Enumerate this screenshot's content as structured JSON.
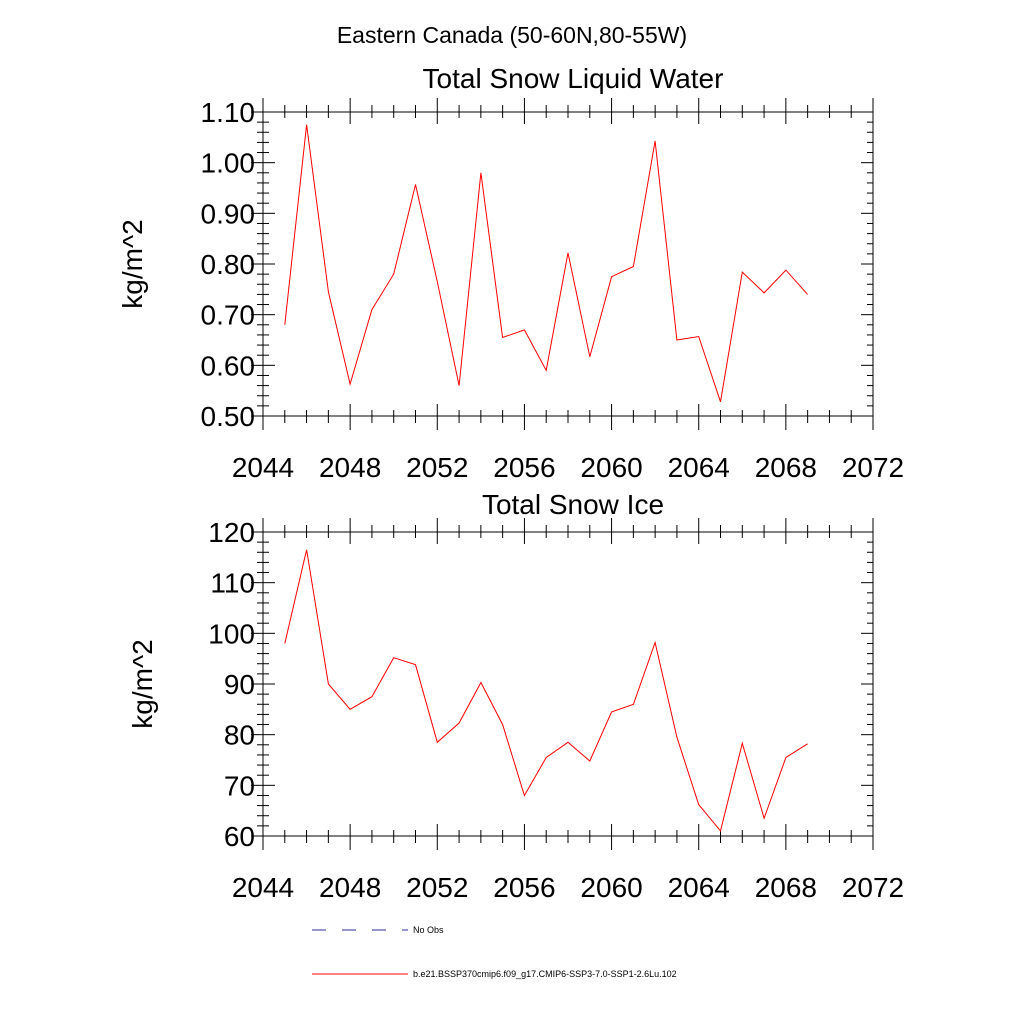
{
  "figure": {
    "suptitle": "Eastern Canada (50-60N,80-55W)"
  },
  "legend": {
    "obs_label": "No Obs",
    "obs_color": "#2b2b99",
    "model_label": "b.e21.BSSP370cmip6.f09_g17.CMIP6-SSP3-7.0-SSP1-2.6Lu.102",
    "model_color": "#ff0000"
  },
  "chart_data": [
    {
      "type": "line",
      "title": "Total Snow Liquid Water",
      "xlabel": "",
      "ylabel": "kg/m^2",
      "xlim": [
        2044,
        2072
      ],
      "ylim": [
        0.5,
        1.1
      ],
      "xticks": [
        "2044",
        "2048",
        "2052",
        "2056",
        "2060",
        "2064",
        "2068",
        "2072"
      ],
      "yticks": [
        "0.50",
        "0.60",
        "0.70",
        "0.80",
        "0.90",
        "1.00",
        "1.10"
      ],
      "grid": false,
      "x": [
        2045,
        2046,
        2047,
        2048,
        2049,
        2050,
        2051,
        2052,
        2053,
        2054,
        2055,
        2056,
        2057,
        2058,
        2059,
        2060,
        2061,
        2062,
        2063,
        2064,
        2065,
        2066,
        2067,
        2068,
        2069
      ],
      "series": [
        {
          "color": "#ff0000",
          "values": [
            0.68,
            1.075,
            0.745,
            0.563,
            0.71,
            0.78,
            0.957,
            0.765,
            0.56,
            0.98,
            0.655,
            0.67,
            0.59,
            0.822,
            0.617,
            0.775,
            0.795,
            1.043,
            0.65,
            0.657,
            0.528,
            0.784,
            0.743,
            0.788,
            0.74
          ]
        }
      ]
    },
    {
      "type": "line",
      "title": "Total Snow Ice",
      "xlabel": "",
      "ylabel": "kg/m^2",
      "xlim": [
        2044,
        2072
      ],
      "ylim": [
        60,
        120
      ],
      "xticks": [
        "2044",
        "2048",
        "2052",
        "2056",
        "2060",
        "2064",
        "2068",
        "2072"
      ],
      "yticks": [
        "60",
        "70",
        "80",
        "90",
        "100",
        "110",
        "120"
      ],
      "grid": false,
      "x": [
        2045,
        2046,
        2047,
        2048,
        2049,
        2050,
        2051,
        2052,
        2053,
        2054,
        2055,
        2056,
        2057,
        2058,
        2059,
        2060,
        2061,
        2062,
        2063,
        2064,
        2065,
        2066,
        2067,
        2068,
        2069
      ],
      "series": [
        {
          "color": "#ff0000",
          "values": [
            98.0,
            116.5,
            90.0,
            85.0,
            87.5,
            95.2,
            93.8,
            78.5,
            82.3,
            90.3,
            82.0,
            68.0,
            75.5,
            78.5,
            74.8,
            84.5,
            86.0,
            98.2,
            79.5,
            66.2,
            61.0,
            78.3,
            63.5,
            75.5,
            78.2
          ]
        }
      ]
    }
  ]
}
